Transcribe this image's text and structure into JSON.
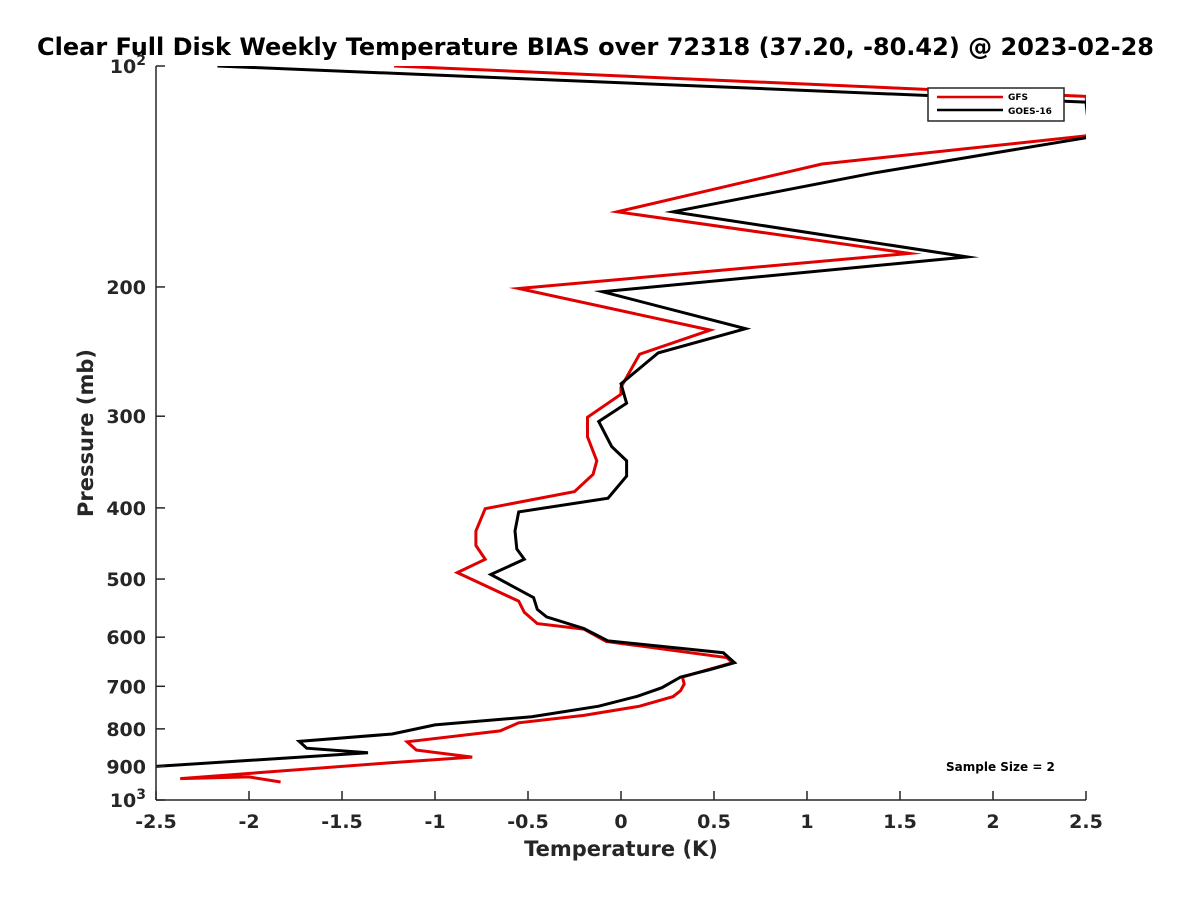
{
  "chart_data": {
    "type": "line",
    "title": "Clear Full Disk Weekly Temperature BIAS over 72318 (37.20, -80.42) @ 2023-02-28",
    "xlabel": "Temperature (K)",
    "ylabel": "Pressure (mb)",
    "xlim": [
      -2.5,
      2.5
    ],
    "ylim": [
      100,
      1000
    ],
    "y_scale": "log",
    "y_reversed": true,
    "x_ticks": [
      "-2.5",
      "-2",
      "-1.5",
      "-1",
      "-0.5",
      "0",
      "0.5",
      "1",
      "1.5",
      "2",
      "2.5"
    ],
    "y_ticks": [
      {
        "value": 100,
        "base": "10",
        "exp": "2"
      },
      {
        "value": 200,
        "base": "200",
        "exp": ""
      },
      {
        "value": 300,
        "base": "300",
        "exp": ""
      },
      {
        "value": 400,
        "base": "400",
        "exp": ""
      },
      {
        "value": 500,
        "base": "500",
        "exp": ""
      },
      {
        "value": 600,
        "base": "600",
        "exp": ""
      },
      {
        "value": 700,
        "base": "700",
        "exp": ""
      },
      {
        "value": 800,
        "base": "800",
        "exp": ""
      },
      {
        "value": 900,
        "base": "900",
        "exp": ""
      },
      {
        "value": 1000,
        "base": "10",
        "exp": "3"
      }
    ],
    "legend": {
      "placement": "top-right"
    },
    "annotation": "Sample Size = 2",
    "series": [
      {
        "name": "GFS",
        "color": "#e00000",
        "points": [
          [
            -1.22,
            100
          ],
          [
            2.5,
            110
          ],
          [
            2.52,
            123
          ],
          [
            2.5,
            124.5
          ],
          [
            1.08,
            136
          ],
          [
            -0.02,
            158
          ],
          [
            1.55,
            180
          ],
          [
            -0.55,
            201
          ],
          [
            0.48,
            229
          ],
          [
            0.1,
            247
          ],
          [
            0.0,
            274
          ],
          [
            0.0,
            280
          ],
          [
            -0.18,
            301
          ],
          [
            -0.18,
            320
          ],
          [
            -0.13,
            345
          ],
          [
            -0.15,
            360
          ],
          [
            -0.25,
            380
          ],
          [
            -0.73,
            401
          ],
          [
            -0.78,
            430
          ],
          [
            -0.78,
            450
          ],
          [
            -0.73,
            470
          ],
          [
            -0.88,
            490
          ],
          [
            -0.55,
            536
          ],
          [
            -0.52,
            555
          ],
          [
            -0.45,
            575
          ],
          [
            -0.2,
            585
          ],
          [
            -0.08,
            608
          ],
          [
            0.57,
            640
          ],
          [
            0.6,
            650
          ],
          [
            0.33,
            680
          ],
          [
            0.34,
            695
          ],
          [
            0.32,
            710
          ],
          [
            0.28,
            723
          ],
          [
            0.1,
            745
          ],
          [
            -0.2,
            767
          ],
          [
            -0.55,
            785
          ],
          [
            -0.65,
            805
          ],
          [
            -1.15,
            833
          ],
          [
            -1.1,
            855
          ],
          [
            -0.8,
            874
          ],
          [
            -1.25,
            890
          ],
          [
            -2.37,
            935
          ],
          [
            -2.0,
            930
          ],
          [
            -1.83,
            945
          ]
        ]
      },
      {
        "name": "GOES-16",
        "color": "#000000",
        "points": [
          [
            -2.17,
            100
          ],
          [
            2.5,
            112
          ],
          [
            2.52,
            125
          ],
          [
            1.35,
            140
          ],
          [
            0.28,
            158
          ],
          [
            1.86,
            182
          ],
          [
            -0.1,
            203
          ],
          [
            0.67,
            228
          ],
          [
            0.2,
            246
          ],
          [
            0.0,
            271
          ],
          [
            0.03,
            288
          ],
          [
            -0.12,
            305
          ],
          [
            -0.05,
            330
          ],
          [
            0.03,
            345
          ],
          [
            0.03,
            362
          ],
          [
            -0.07,
            388
          ],
          [
            -0.55,
            405
          ],
          [
            -0.57,
            430
          ],
          [
            -0.56,
            455
          ],
          [
            -0.52,
            470
          ],
          [
            -0.7,
            493
          ],
          [
            -0.47,
            530
          ],
          [
            -0.45,
            550
          ],
          [
            -0.4,
            563
          ],
          [
            -0.2,
            584
          ],
          [
            -0.07,
            607
          ],
          [
            0.55,
            630
          ],
          [
            0.61,
            650
          ],
          [
            0.48,
            664
          ],
          [
            0.32,
            680
          ],
          [
            0.22,
            703
          ],
          [
            0.09,
            722
          ],
          [
            -0.12,
            745
          ],
          [
            -0.48,
            770
          ],
          [
            -1.0,
            790
          ],
          [
            -1.23,
            813
          ],
          [
            -1.73,
            832
          ],
          [
            -1.69,
            850
          ],
          [
            -1.36,
            862
          ],
          [
            -2.5,
            900
          ],
          [
            -2.6,
            905
          ]
        ]
      }
    ]
  }
}
